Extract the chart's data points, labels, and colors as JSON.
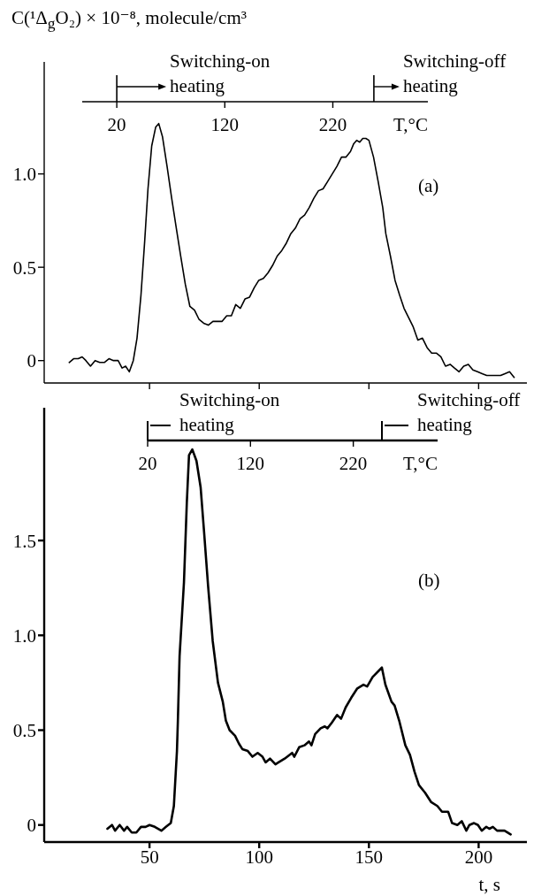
{
  "chart_data": [
    {
      "type": "line",
      "ylabel": "C(¹Δ$_{g}$O₂) × 10⁻⁸, molecule/cm³",
      "annotations": [
        "(a)"
      ],
      "x": [
        13.4,
        15.4,
        17.5,
        19.3,
        21.0,
        23.1,
        25.2,
        27.3,
        29.4,
        31.5,
        33.6,
        35.7,
        37.5,
        39.1,
        40.8,
        42.6,
        44.3,
        46.1,
        47.8,
        49.3,
        51.0,
        52.8,
        54.2,
        55.9,
        58.0,
        60.1,
        62.2,
        64.2,
        66.3,
        68.4,
        70.5,
        72.6,
        74.7,
        76.8,
        78.9,
        81.0,
        83.1,
        85.2,
        87.3,
        89.3,
        91.4,
        93.5,
        95.6,
        97.7,
        99.8,
        101.9,
        104.0,
        106.1,
        108.2,
        110.3,
        112.4,
        114.4,
        116.5,
        118.6,
        120.7,
        122.8,
        124.9,
        127.0,
        129.1,
        131.2,
        133.3,
        135.4,
        137.5,
        139.5,
        141.6,
        143.0,
        144.4,
        145.8,
        147.2,
        148.6,
        150.0,
        152.1,
        154.2,
        156.3,
        157.7,
        159.8,
        161.9,
        164.0,
        166.0,
        168.1,
        170.2,
        172.3,
        174.4,
        176.5,
        178.6,
        180.7,
        182.8,
        184.9,
        187.0,
        189.0,
        191.1,
        193.2,
        195.3,
        197.4,
        199.5,
        201.6,
        203.7,
        205.8,
        207.9,
        210.0,
        212.0,
        214.1,
        216.2
      ],
      "series": [
        {
          "color": "#000000",
          "values": [
            -0.01,
            0.01,
            0.01,
            0.02,
            0.0,
            -0.03,
            0.0,
            -0.01,
            -0.01,
            0.01,
            0.0,
            0.0,
            -0.04,
            -0.03,
            -0.06,
            0.0,
            0.12,
            0.35,
            0.64,
            0.92,
            1.15,
            1.25,
            1.27,
            1.2,
            1.04,
            0.87,
            0.71,
            0.56,
            0.41,
            0.29,
            0.27,
            0.22,
            0.2,
            0.19,
            0.21,
            0.21,
            0.21,
            0.24,
            0.24,
            0.3,
            0.28,
            0.33,
            0.34,
            0.39,
            0.43,
            0.44,
            0.47,
            0.51,
            0.56,
            0.59,
            0.63,
            0.68,
            0.71,
            0.76,
            0.78,
            0.82,
            0.87,
            0.91,
            0.92,
            0.96,
            1.0,
            1.04,
            1.09,
            1.09,
            1.12,
            1.16,
            1.18,
            1.17,
            1.19,
            1.19,
            1.18,
            1.09,
            0.96,
            0.82,
            0.68,
            0.56,
            0.43,
            0.35,
            0.28,
            0.23,
            0.18,
            0.11,
            0.12,
            0.07,
            0.04,
            0.04,
            0.02,
            -0.03,
            -0.02,
            -0.04,
            -0.06,
            -0.03,
            -0.02,
            -0.05,
            -0.06,
            -0.07,
            -0.08,
            -0.08,
            -0.08,
            -0.08,
            -0.07,
            -0.06,
            -0.09
          ]
        }
      ],
      "xlim": [
        2,
        222
      ],
      "xticks": [
        50,
        100,
        150,
        200
      ],
      "tick_labels": "y",
      "ylim": [
        -0.12,
        1.6
      ],
      "yticks": [
        0,
        0.5,
        {
          "value": 1,
          "label": "1.0"
        }
      ],
      "x2lim": [
        -12,
        308
      ],
      "x2ticks": [
        20,
        120,
        220
      ],
      "x2label": "T,°C",
      "ref_lines": [
        {
          "axis": "x2",
          "value": 20,
          "label": "Switching-on heating"
        },
        {
          "axis": "x2",
          "value": 258,
          "label": "Switching-off heating"
        }
      ]
    },
    {
      "type": "line",
      "xlabel": "t, s",
      "annotations": [
        "(b)",
        "Switching-on heating",
        "Switching-off heating"
      ],
      "x": [
        30.8,
        32.9,
        34.3,
        36.4,
        38.4,
        39.8,
        41.9,
        44.0,
        46.1,
        48.2,
        50,
        52.4,
        55.4,
        57.5,
        59.7,
        61.1,
        62.5,
        62.9,
        63.7,
        65.7,
        67.0,
        68.0,
        69.5,
        71.4,
        73.3,
        74.9,
        76.7,
        78.8,
        81.2,
        83.4,
        84.8,
        86.5,
        89.0,
        90.7,
        92.3,
        94.8,
        96.9,
        99.3,
        101.5,
        102.9,
        104.9,
        107.4,
        108.8,
        111.6,
        115.0,
        116.0,
        118.2,
        120.6,
        122.7,
        123.8,
        125.5,
        128.0,
        129.9,
        131.1,
        133.1,
        135.5,
        137.3,
        139.4,
        141.9,
        144.7,
        147.5,
        149.2,
        151.7,
        155.9,
        157.5,
        160.3,
        161.7,
        163.8,
        166.6,
        168.7,
        170.8,
        172.8,
        175.6,
        178.4,
        181.2,
        183.3,
        186.1,
        187.9,
        190.3,
        192.3,
        194.4,
        195.8,
        197.9,
        199.7,
        201.4,
        203.5,
        204.9,
        206.5,
        208.4,
        211.8,
        214.6
      ],
      "series": [
        {
          "color": "#000000",
          "values": [
            -0.02,
            0.0,
            -0.03,
            0.0,
            -0.03,
            -0.01,
            -0.04,
            -0.04,
            -0.01,
            -0.01,
            0.0,
            -0.01,
            -0.03,
            -0.01,
            0.01,
            0.1,
            0.39,
            0.54,
            0.89,
            1.28,
            1.7,
            1.95,
            1.98,
            1.92,
            1.78,
            1.54,
            1.26,
            0.97,
            0.75,
            0.65,
            0.55,
            0.5,
            0.47,
            0.43,
            0.4,
            0.39,
            0.36,
            0.38,
            0.36,
            0.33,
            0.35,
            0.32,
            0.33,
            0.35,
            0.38,
            0.36,
            0.41,
            0.42,
            0.44,
            0.42,
            0.48,
            0.51,
            0.52,
            0.51,
            0.54,
            0.58,
            0.56,
            0.62,
            0.67,
            0.72,
            0.74,
            0.73,
            0.78,
            0.83,
            0.74,
            0.65,
            0.63,
            0.55,
            0.42,
            0.37,
            0.28,
            0.21,
            0.17,
            0.12,
            0.1,
            0.07,
            0.07,
            0.01,
            0.0,
            0.02,
            -0.03,
            0.0,
            0.01,
            0.0,
            -0.03,
            -0.01,
            -0.02,
            -0.01,
            -0.03,
            -0.03,
            -0.05
          ]
        }
      ],
      "xlim": [
        2,
        222
      ],
      "xticks": [
        50,
        100,
        150,
        200
      ],
      "ylim": [
        -0.09,
        2.2
      ],
      "yticks": [
        0,
        0.5,
        {
          "value": 1,
          "label": "1.0"
        },
        1.5
      ],
      "x2lim": [
        20,
        302
      ],
      "x2ticks": [
        20,
        120,
        220
      ],
      "x2label": "T,°C"
    }
  ]
}
